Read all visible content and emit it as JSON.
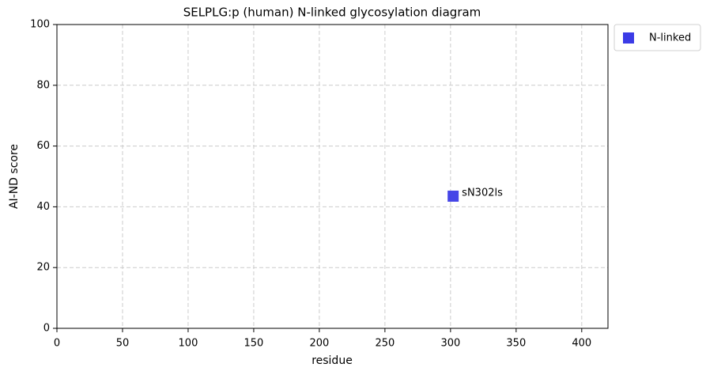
{
  "chart_data": {
    "type": "scatter",
    "title": "SELPLG:p (human) N-linked glycosylation diagram",
    "xlabel": "residue",
    "ylabel": "AI-ND score",
    "series": [
      {
        "name": "N-linked",
        "color": "#3b3be6",
        "marker": "square",
        "x": [
          302
        ],
        "values": [
          43.5
        ],
        "point_labels": [
          "sN302ls"
        ]
      }
    ],
    "xlim": [
      0,
      420
    ],
    "xticks": [
      0,
      50,
      100,
      150,
      200,
      250,
      300,
      350,
      400
    ],
    "ylim": [
      0,
      100
    ],
    "yticks": [
      0,
      20,
      40,
      60,
      80,
      100
    ],
    "grid": true,
    "legend": "outside-upper-right"
  }
}
